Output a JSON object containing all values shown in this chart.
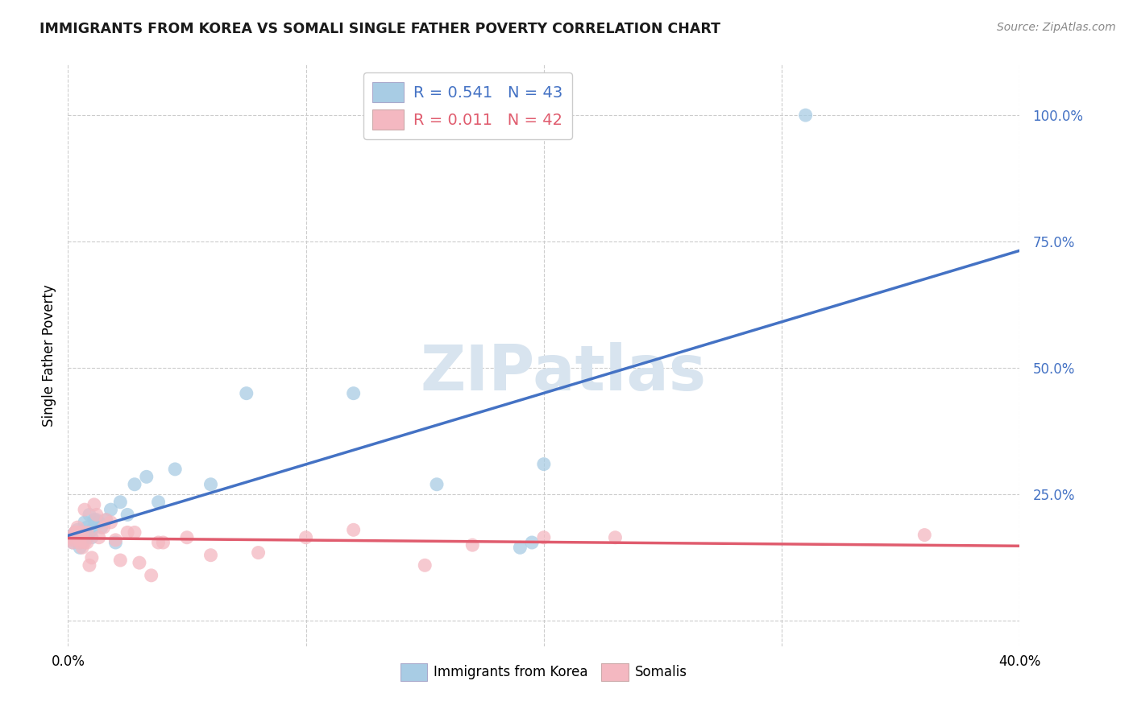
{
  "title": "IMMIGRANTS FROM KOREA VS SOMALI SINGLE FATHER POVERTY CORRELATION CHART",
  "source": "Source: ZipAtlas.com",
  "ylabel": "Single Father Poverty",
  "legend_korea_R": "0.541",
  "legend_korea_N": "43",
  "legend_somali_R": "0.011",
  "legend_somali_N": "42",
  "korea_color": "#a8cce4",
  "somali_color": "#f4b8c1",
  "korea_line_color": "#4472c4",
  "somali_line_color": "#e05c6e",
  "background_color": "#ffffff",
  "watermark_text": "ZIPatlas",
  "watermark_color": "#d8e4ef",
  "korea_x": [
    0.001,
    0.002,
    0.002,
    0.003,
    0.003,
    0.004,
    0.004,
    0.005,
    0.005,
    0.005,
    0.006,
    0.006,
    0.006,
    0.007,
    0.007,
    0.007,
    0.008,
    0.008,
    0.009,
    0.009,
    0.01,
    0.01,
    0.011,
    0.012,
    0.013,
    0.014,
    0.016,
    0.018,
    0.02,
    0.022,
    0.025,
    0.028,
    0.033,
    0.038,
    0.045,
    0.06,
    0.075,
    0.12,
    0.155,
    0.19,
    0.195,
    0.2,
    0.31
  ],
  "korea_y": [
    0.165,
    0.17,
    0.155,
    0.175,
    0.16,
    0.165,
    0.18,
    0.145,
    0.165,
    0.155,
    0.17,
    0.16,
    0.175,
    0.16,
    0.175,
    0.195,
    0.185,
    0.165,
    0.175,
    0.21,
    0.165,
    0.18,
    0.2,
    0.2,
    0.195,
    0.185,
    0.2,
    0.22,
    0.155,
    0.235,
    0.21,
    0.27,
    0.285,
    0.235,
    0.3,
    0.27,
    0.45,
    0.45,
    0.27,
    0.145,
    0.155,
    0.31,
    1.0
  ],
  "somali_x": [
    0.001,
    0.002,
    0.002,
    0.003,
    0.003,
    0.004,
    0.004,
    0.005,
    0.005,
    0.005,
    0.006,
    0.006,
    0.007,
    0.007,
    0.008,
    0.008,
    0.009,
    0.01,
    0.011,
    0.012,
    0.013,
    0.015,
    0.016,
    0.018,
    0.02,
    0.022,
    0.025,
    0.028,
    0.03,
    0.035,
    0.038,
    0.04,
    0.05,
    0.06,
    0.08,
    0.1,
    0.12,
    0.15,
    0.17,
    0.2,
    0.23,
    0.36
  ],
  "somali_y": [
    0.165,
    0.16,
    0.155,
    0.175,
    0.175,
    0.185,
    0.175,
    0.16,
    0.155,
    0.165,
    0.145,
    0.175,
    0.155,
    0.22,
    0.155,
    0.175,
    0.11,
    0.125,
    0.23,
    0.21,
    0.165,
    0.185,
    0.2,
    0.195,
    0.16,
    0.12,
    0.175,
    0.175,
    0.115,
    0.09,
    0.155,
    0.155,
    0.165,
    0.13,
    0.135,
    0.165,
    0.18,
    0.11,
    0.15,
    0.165,
    0.165,
    0.17
  ],
  "xlim": [
    0.0,
    0.4
  ],
  "ylim": [
    -0.05,
    1.1
  ],
  "ytick_vals": [
    0.0,
    0.25,
    0.5,
    0.75,
    1.0
  ],
  "ytick_labels": [
    "",
    "25.0%",
    "50.0%",
    "75.0%",
    "100.0%"
  ],
  "xtick_vals": [
    0.0,
    0.1,
    0.2,
    0.3,
    0.4
  ],
  "xtick_labels_show": [
    "0.0%",
    "",
    "",
    "",
    "40.0%"
  ]
}
